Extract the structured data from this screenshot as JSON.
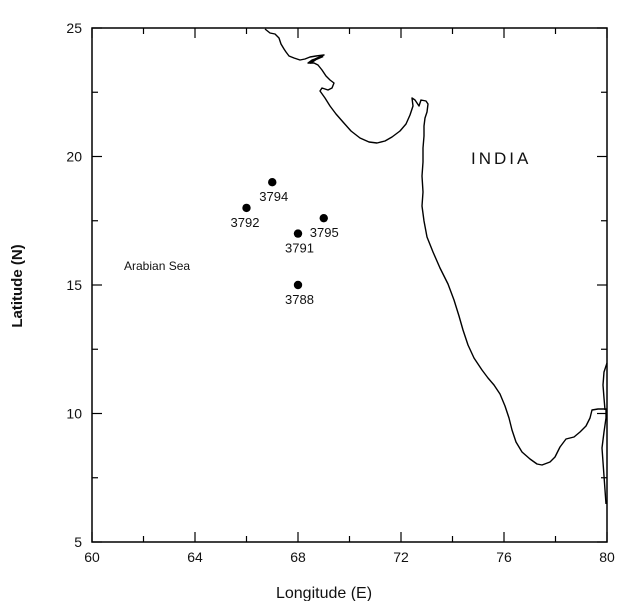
{
  "map": {
    "xlabel": "Longitude (E)",
    "ylabel": "Latitude (N)",
    "xlim": [
      60,
      80
    ],
    "ylim": [
      5,
      25
    ],
    "x_ticks": [
      "60",
      "64",
      "68",
      "72",
      "76",
      "80"
    ],
    "y_ticks": [
      "5",
      "10",
      "15",
      "20",
      "25"
    ],
    "places": {
      "sea": "Arabian Sea",
      "country": "INDIA"
    },
    "stations": [
      {
        "id": "3794",
        "lon": 67.0,
        "lat": 19.0
      },
      {
        "id": "3792",
        "lon": 66.0,
        "lat": 18.0
      },
      {
        "id": "3795",
        "lon": 69.0,
        "lat": 17.6
      },
      {
        "id": "3791",
        "lon": 68.0,
        "lat": 17.0
      },
      {
        "id": "3788",
        "lon": 68.0,
        "lat": 15.0
      }
    ],
    "coastline_color": "#000000",
    "marker_color": "#000000"
  }
}
